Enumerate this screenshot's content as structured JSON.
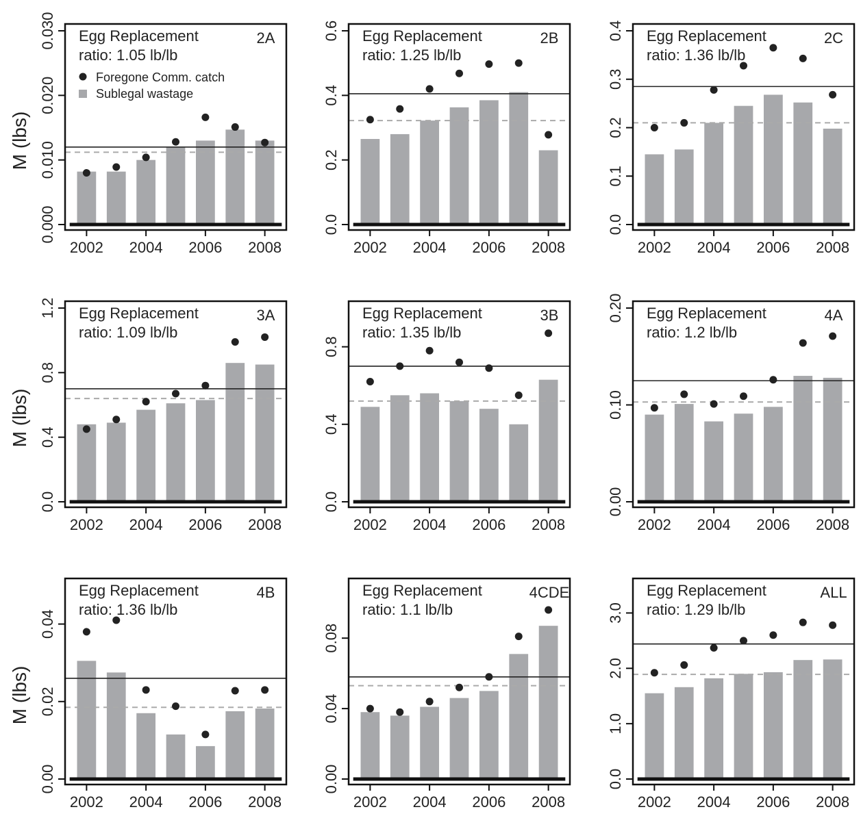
{
  "figure": {
    "ylabel": "M (lbs)",
    "legend": {
      "dot_label": "Foregone Comm. catch",
      "bar_label": "Sublegal wastage"
    },
    "colors": {
      "bar": "#a7a8ab",
      "dot": "#222222",
      "line": "#222222",
      "dashed": "#aaaaaa",
      "frame": "#111111"
    }
  },
  "chart_data": [
    {
      "type": "bar",
      "region": "2A",
      "title_line1": "Egg Replacement",
      "title_line2": "ratio: 1.05 lb/lb",
      "categories": [
        "2002",
        "2003",
        "2004",
        "2005",
        "2006",
        "2007",
        "2008"
      ],
      "xticks": [
        "2002",
        "2004",
        "2006",
        "2008"
      ],
      "ylim": [
        0,
        0.03
      ],
      "yticks": [
        "0.000",
        "0.010",
        "0.020",
        "0.030"
      ],
      "series": [
        {
          "name": "Sublegal wastage",
          "values": [
            0.0082,
            0.0082,
            0.01,
            0.012,
            0.013,
            0.0147,
            0.013
          ]
        },
        {
          "name": "Foregone Comm. catch",
          "values": [
            0.008,
            0.0089,
            0.0104,
            0.0128,
            0.0166,
            0.0151,
            0.0127
          ]
        }
      ],
      "solid_line": 0.012,
      "dashed_line": 0.0112,
      "legend": "top-left"
    },
    {
      "type": "bar",
      "region": "2B",
      "title_line1": "Egg Replacement",
      "title_line2": "ratio: 1.25 lb/lb",
      "categories": [
        "2002",
        "2003",
        "2004",
        "2005",
        "2006",
        "2007",
        "2008"
      ],
      "xticks": [
        "2002",
        "2004",
        "2006",
        "2008"
      ],
      "ylim": [
        0,
        0.6
      ],
      "yticks": [
        "0.0",
        "0.2",
        "0.4",
        "0.6"
      ],
      "series": [
        {
          "name": "Sublegal wastage",
          "values": [
            0.265,
            0.28,
            0.322,
            0.363,
            0.385,
            0.41,
            0.23
          ]
        },
        {
          "name": "Foregone Comm. catch",
          "values": [
            0.325,
            0.358,
            0.42,
            0.468,
            0.497,
            0.5,
            0.278
          ]
        }
      ],
      "solid_line": 0.405,
      "dashed_line": 0.322
    },
    {
      "type": "bar",
      "region": "2C",
      "title_line1": "Egg Replacement",
      "title_line2": "ratio: 1.36 lb/lb",
      "categories": [
        "2002",
        "2003",
        "2004",
        "2005",
        "2006",
        "2007",
        "2008"
      ],
      "xticks": [
        "2002",
        "2004",
        "2006",
        "2008"
      ],
      "ylim": [
        0,
        0.4
      ],
      "yticks": [
        "0.0",
        "0.1",
        "0.2",
        "0.3",
        "0.4"
      ],
      "series": [
        {
          "name": "Sublegal wastage",
          "values": [
            0.145,
            0.155,
            0.21,
            0.245,
            0.268,
            0.252,
            0.198
          ]
        },
        {
          "name": "Foregone Comm. catch",
          "values": [
            0.2,
            0.21,
            0.278,
            0.328,
            0.365,
            0.343,
            0.268
          ]
        }
      ],
      "solid_line": 0.285,
      "dashed_line": 0.21
    },
    {
      "type": "bar",
      "region": "3A",
      "title_line1": "Egg Replacement",
      "title_line2": "ratio: 1.09 lb/lb",
      "categories": [
        "2002",
        "2003",
        "2004",
        "2005",
        "2006",
        "2007",
        "2008"
      ],
      "xticks": [
        "2002",
        "2004",
        "2006",
        "2008"
      ],
      "ylim": [
        0,
        1.2
      ],
      "yticks": [
        "0.0",
        "0.4",
        "0.8",
        "1.2"
      ],
      "series": [
        {
          "name": "Sublegal wastage",
          "values": [
            0.48,
            0.49,
            0.57,
            0.61,
            0.63,
            0.86,
            0.85
          ]
        },
        {
          "name": "Foregone Comm. catch",
          "values": [
            0.45,
            0.51,
            0.62,
            0.67,
            0.72,
            0.99,
            1.02
          ]
        }
      ],
      "solid_line": 0.7,
      "dashed_line": 0.64
    },
    {
      "type": "bar",
      "region": "3B",
      "title_line1": "Egg Replacement",
      "title_line2": "ratio: 1.35 lb/lb",
      "categories": [
        "2002",
        "2003",
        "2004",
        "2005",
        "2006",
        "2007",
        "2008"
      ],
      "xticks": [
        "2002",
        "2004",
        "2006",
        "2008"
      ],
      "ylim": [
        0,
        1.0
      ],
      "yticks": [
        "0.0",
        "0.4",
        "0.8"
      ],
      "series": [
        {
          "name": "Sublegal wastage",
          "values": [
            0.49,
            0.55,
            0.56,
            0.52,
            0.48,
            0.4,
            0.63
          ]
        },
        {
          "name": "Foregone Comm. catch",
          "values": [
            0.62,
            0.7,
            0.78,
            0.72,
            0.69,
            0.55,
            0.87
          ]
        }
      ],
      "solid_line": 0.7,
      "dashed_line": 0.52
    },
    {
      "type": "bar",
      "region": "4A",
      "title_line1": "Egg Replacement",
      "title_line2": "ratio: 1.2 lb/lb",
      "categories": [
        "2002",
        "2003",
        "2004",
        "2005",
        "2006",
        "2007",
        "2008"
      ],
      "xticks": [
        "2002",
        "2004",
        "2006",
        "2008"
      ],
      "ylim": [
        0,
        0.2
      ],
      "yticks": [
        "0.00",
        "0.10",
        "0.20"
      ],
      "series": [
        {
          "name": "Sublegal wastage",
          "values": [
            0.09,
            0.101,
            0.083,
            0.091,
            0.098,
            0.13,
            0.128
          ]
        },
        {
          "name": "Foregone Comm. catch",
          "values": [
            0.097,
            0.111,
            0.101,
            0.109,
            0.126,
            0.164,
            0.171
          ]
        }
      ],
      "solid_line": 0.125,
      "dashed_line": 0.103
    },
    {
      "type": "bar",
      "region": "4B",
      "title_line1": "Egg Replacement",
      "title_line2": "ratio: 1.36 lb/lb",
      "categories": [
        "2002",
        "2003",
        "2004",
        "2005",
        "2006",
        "2007",
        "2008"
      ],
      "xticks": [
        "2002",
        "2004",
        "2006",
        "2008"
      ],
      "ylim": [
        0,
        0.05
      ],
      "yticks": [
        "0.00",
        "0.02",
        "0.04"
      ],
      "series": [
        {
          "name": "Sublegal wastage",
          "values": [
            0.0305,
            0.0275,
            0.017,
            0.0115,
            0.0085,
            0.0175,
            0.0182
          ]
        },
        {
          "name": "Foregone Comm. catch",
          "values": [
            0.038,
            0.041,
            0.023,
            0.0188,
            0.0115,
            0.0228,
            0.023
          ]
        }
      ],
      "solid_line": 0.026,
      "dashed_line": 0.0185
    },
    {
      "type": "bar",
      "region": "4CDE",
      "title_line1": "Egg Replacement",
      "title_line2": "ratio: 1.1 lb/lb",
      "categories": [
        "2002",
        "2003",
        "2004",
        "2005",
        "2006",
        "2007",
        "2008"
      ],
      "xticks": [
        "2002",
        "2004",
        "2006",
        "2008"
      ],
      "ylim": [
        0,
        0.11
      ],
      "yticks": [
        "0.00",
        "0.04",
        "0.08"
      ],
      "series": [
        {
          "name": "Sublegal wastage",
          "values": [
            0.038,
            0.036,
            0.041,
            0.046,
            0.05,
            0.071,
            0.087
          ]
        },
        {
          "name": "Foregone Comm. catch",
          "values": [
            0.04,
            0.038,
            0.044,
            0.052,
            0.058,
            0.081,
            0.096
          ]
        }
      ],
      "solid_line": 0.058,
      "dashed_line": 0.053
    },
    {
      "type": "bar",
      "region": "ALL",
      "title_line1": "Egg Replacement",
      "title_line2": "ratio: 1.29 lb/lb",
      "categories": [
        "2002",
        "2003",
        "2004",
        "2005",
        "2006",
        "2007",
        "2008"
      ],
      "xticks": [
        "2002",
        "2004",
        "2006",
        "2008"
      ],
      "ylim": [
        0,
        3.5
      ],
      "yticks": [
        "0.0",
        "1.0",
        "2.0",
        "3.0"
      ],
      "series": [
        {
          "name": "Sublegal wastage",
          "values": [
            1.55,
            1.66,
            1.82,
            1.9,
            1.93,
            2.15,
            2.16
          ]
        },
        {
          "name": "Foregone Comm. catch",
          "values": [
            1.92,
            2.06,
            2.37,
            2.5,
            2.6,
            2.83,
            2.78
          ]
        }
      ],
      "solid_line": 2.44,
      "dashed_line": 1.89
    }
  ]
}
